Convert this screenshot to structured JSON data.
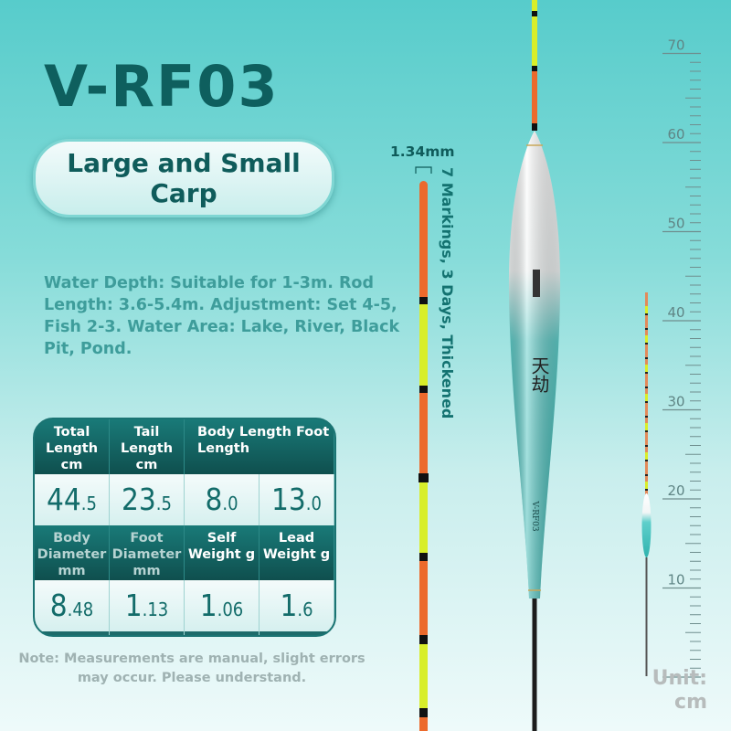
{
  "title": "V-RF03",
  "category": "Large and Small Carp",
  "description": "Water Depth: Suitable for 1-3m. Rod Length: 3.6-5.4m. Adjustment: Set 4-5, Fish 2-3. Water Area: Lake, River, Black Pit, Pond.",
  "tail": {
    "diameter": "1.34mm",
    "feature": "7 Markings, 3 Days, Thickened"
  },
  "specs": {
    "row1_headers": [
      "Total Length cm",
      "Tail Length cm",
      "Body Length Foot Length"
    ],
    "row1_values": [
      {
        "int": "44",
        "dec": ".5"
      },
      {
        "int": "23",
        "dec": ".5"
      },
      {
        "int": "8",
        "dec": ".0"
      },
      {
        "int": "13",
        "dec": ".0"
      }
    ],
    "row2_headers": [
      "Body Diameter mm",
      "Foot Diameter mm",
      "Self Weight g",
      "Lead Weight g"
    ],
    "row2_values": [
      {
        "int": "8",
        "dec": ".48"
      },
      {
        "int": "1",
        "dec": ".13"
      },
      {
        "int": "1",
        "dec": ".06"
      },
      {
        "int": "1",
        "dec": ".6"
      }
    ]
  },
  "note": "Note: Measurements are manual, slight errors may occur. Please understand.",
  "float_label": "V-RF03",
  "float_brand_chars": "天劫",
  "ruler": {
    "unit_label": "Unit: cm",
    "ticks": [
      "70",
      "60",
      "50",
      "40",
      "30",
      "20",
      "10"
    ],
    "range_cm": [
      0,
      70
    ]
  },
  "colors": {
    "title": "#0e5f5e",
    "accent": "#137270",
    "tail_orange": "#ec6a2c",
    "tail_yellow": "#d8ee2a"
  }
}
